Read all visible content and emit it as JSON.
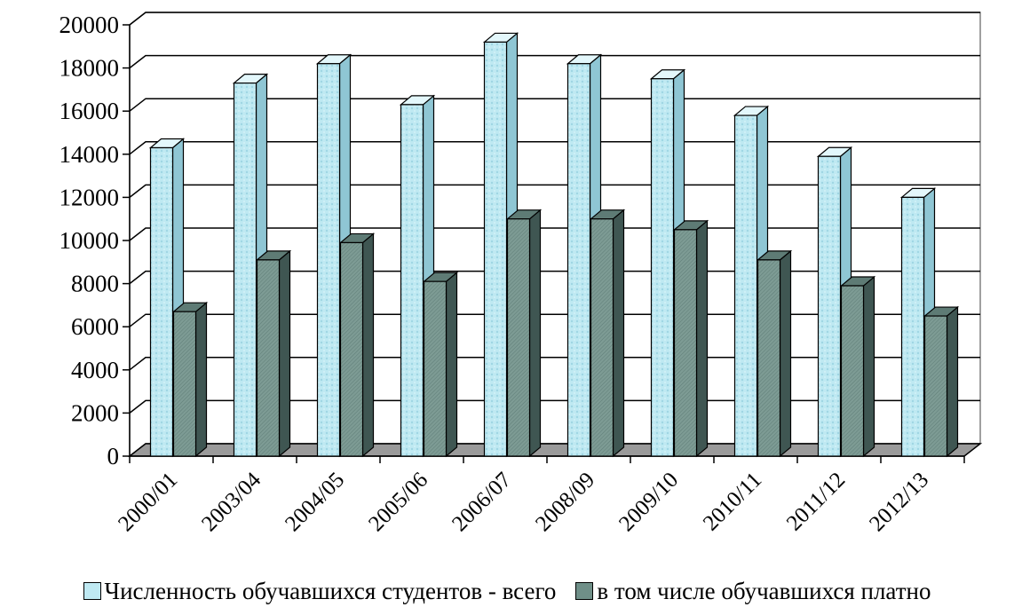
{
  "chart_data": {
    "type": "bar",
    "style": "3d-clustered-column",
    "categories": [
      "2000/01",
      "2003/04",
      "2004/05",
      "2005/06",
      "2006/07",
      "2008/09",
      "2009/10",
      "2010/11",
      "2011/12",
      "2012/13"
    ],
    "series": [
      {
        "name": "Численность обучавшихся студентов - всего",
        "color": "#bfe9f2",
        "values": [
          14300,
          17300,
          18200,
          16300,
          19200,
          18200,
          17500,
          15800,
          13900,
          12000
        ]
      },
      {
        "name": "в том числе обучавшихся платно",
        "color": "#6f8f88",
        "values": [
          6700,
          9100,
          9900,
          8100,
          11000,
          11000,
          10500,
          9100,
          7900,
          6500
        ]
      }
    ],
    "ylim": [
      0,
      20000
    ],
    "yticks": [
      0,
      2000,
      4000,
      6000,
      8000,
      10000,
      12000,
      14000,
      16000,
      18000,
      20000
    ],
    "grid": true,
    "legend": "bottom"
  }
}
